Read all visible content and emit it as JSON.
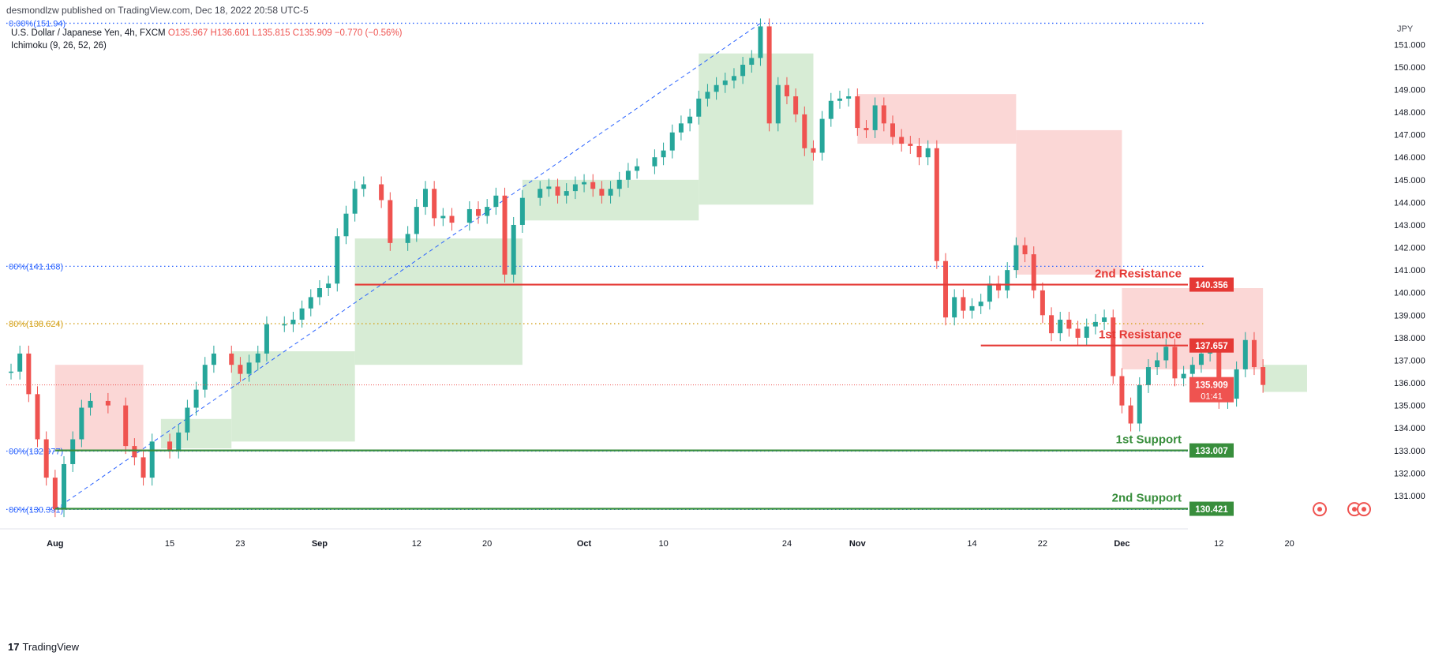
{
  "header": {
    "published": "desmondlzw published on TradingView.com, Dec 18, 2022 20:58 UTC-5"
  },
  "legend": {
    "symbol": "U.S. Dollar / Japanese Yen, 4h, FXCM",
    "values": "O135.967 H136.601 L135.815 C135.909 −0.770 (−0.56%)",
    "indicator": "Ichimoku (9, 26, 52, 26)"
  },
  "footer": {
    "brand": "TradingView"
  },
  "colors": {
    "up": "#26a69a",
    "down": "#ef5350",
    "resistance": "#e53935",
    "support": "#388e3c",
    "fib": "#2962ff",
    "fib80": "#d4a017",
    "cloud_bull": "#d3ead0",
    "cloud_bear": "#fbd3d1"
  },
  "chart_data": {
    "type": "candlestick",
    "currency_label": "JPY",
    "ylim": [
      129.6,
      152.2
    ],
    "y_ticks": [
      131,
      132,
      133,
      134,
      135,
      136,
      137,
      138,
      139,
      140,
      141,
      142,
      143,
      144,
      145,
      146,
      147,
      148,
      149,
      150,
      151
    ],
    "x_ticks": [
      "Aug",
      "15",
      "23",
      "Sep",
      "12",
      "20",
      "Oct",
      "10",
      "24",
      "Nov",
      "14",
      "22",
      "Dec",
      "12",
      "20"
    ],
    "last_price": 135.909,
    "countdown": "01:41",
    "price_path": [
      [
        "Jul 28",
        136.5
      ],
      [
        "Jul 29",
        137.3
      ],
      [
        "Jul 30",
        135.5
      ],
      [
        "Jul 31",
        133.5
      ],
      [
        "Aug 1",
        131.8
      ],
      [
        "Aug 2",
        130.4
      ],
      [
        "Aug 3",
        132.4
      ],
      [
        "Aug 4",
        133.5
      ],
      [
        "Aug 5",
        134.9
      ],
      [
        "Aug 6",
        135.2
      ],
      [
        "Aug 8",
        135.0
      ],
      [
        "Aug 10",
        133.2
      ],
      [
        "Aug 11",
        132.7
      ],
      [
        "Aug 12",
        131.8
      ],
      [
        "Aug 13",
        133.4
      ],
      [
        "Aug 15",
        133.0
      ],
      [
        "Aug 16",
        133.8
      ],
      [
        "Aug 17",
        134.9
      ],
      [
        "Aug 18",
        135.7
      ],
      [
        "Aug 19",
        136.8
      ],
      [
        "Aug 20",
        137.3
      ],
      [
        "Aug 22",
        136.8
      ],
      [
        "Aug 23",
        136.4
      ],
      [
        "Aug 24",
        136.9
      ],
      [
        "Aug 25",
        137.3
      ],
      [
        "Aug 26",
        138.6
      ],
      [
        "Aug 28",
        138.6
      ],
      [
        "Aug 29",
        138.8
      ],
      [
        "Aug 30",
        139.3
      ],
      [
        "Aug 31",
        139.8
      ],
      [
        "Sep 1",
        140.2
      ],
      [
        "Sep 2",
        140.4
      ],
      [
        "Sep 3",
        142.5
      ],
      [
        "Sep 4",
        143.5
      ],
      [
        "Sep 5",
        144.6
      ],
      [
        "Sep 6",
        144.8
      ],
      [
        "Sep 8",
        144.1
      ],
      [
        "Sep 9",
        142.2
      ],
      [
        "Sep 11",
        142.6
      ],
      [
        "Sep 12",
        143.8
      ],
      [
        "Sep 13",
        144.6
      ],
      [
        "Sep 14",
        143.3
      ],
      [
        "Sep 15",
        143.4
      ],
      [
        "Sep 16",
        143.1
      ],
      [
        "Sep 18",
        143.7
      ],
      [
        "Sep 19",
        143.4
      ],
      [
        "Sep 20",
        143.8
      ],
      [
        "Sep 21",
        144.3
      ],
      [
        "Sep 22",
        140.8
      ],
      [
        "Sep 23",
        143.0
      ],
      [
        "Sep 24",
        144.2
      ],
      [
        "Sep 26",
        144.6
      ],
      [
        "Sep 27",
        144.7
      ],
      [
        "Sep 28",
        144.3
      ],
      [
        "Sep 29",
        144.5
      ],
      [
        "Sep 30",
        144.8
      ],
      [
        "Oct 1",
        144.9
      ],
      [
        "Oct 2",
        144.6
      ],
      [
        "Oct 3",
        144.3
      ],
      [
        "Oct 4",
        144.6
      ],
      [
        "Oct 5",
        145.0
      ],
      [
        "Oct 6",
        145.4
      ],
      [
        "Oct 7",
        145.6
      ],
      [
        "Oct 9",
        146.0
      ],
      [
        "Oct 10",
        146.3
      ],
      [
        "Oct 11",
        147.1
      ],
      [
        "Oct 12",
        147.5
      ],
      [
        "Oct 13",
        147.8
      ],
      [
        "Oct 14",
        148.6
      ],
      [
        "Oct 15",
        148.9
      ],
      [
        "Oct 16",
        149.2
      ],
      [
        "Oct 17",
        149.4
      ],
      [
        "Oct 18",
        149.6
      ],
      [
        "Oct 19",
        150.1
      ],
      [
        "Oct 20",
        150.4
      ],
      [
        "Oct 21",
        151.8
      ],
      [
        "Oct 22",
        147.5
      ],
      [
        "Oct 23",
        149.2
      ],
      [
        "Oct 24",
        148.7
      ],
      [
        "Oct 25",
        147.9
      ],
      [
        "Oct 26",
        146.4
      ],
      [
        "Oct 27",
        146.2
      ],
      [
        "Oct 28",
        147.7
      ],
      [
        "Oct 29",
        148.5
      ],
      [
        "Oct 30",
        148.6
      ],
      [
        "Oct 31",
        148.7
      ],
      [
        "Nov 1",
        147.3
      ],
      [
        "Nov 2",
        147.2
      ],
      [
        "Nov 3",
        148.3
      ],
      [
        "Nov 4",
        147.5
      ],
      [
        "Nov 5",
        146.9
      ],
      [
        "Nov 6",
        146.6
      ],
      [
        "Nov 7",
        146.5
      ],
      [
        "Nov 8",
        146.0
      ],
      [
        "Nov 9",
        146.4
      ],
      [
        "Nov 10",
        141.4
      ],
      [
        "Nov 11",
        138.9
      ],
      [
        "Nov 12",
        139.8
      ],
      [
        "Nov 13",
        139.2
      ],
      [
        "Nov 14",
        139.4
      ],
      [
        "Nov 15",
        139.6
      ],
      [
        "Nov 16",
        140.4
      ],
      [
        "Nov 17",
        140.1
      ],
      [
        "Nov 18",
        141.0
      ],
      [
        "Nov 19",
        142.1
      ],
      [
        "Nov 20",
        141.7
      ],
      [
        "Nov 21",
        140.1
      ],
      [
        "Nov 22",
        139.0
      ],
      [
        "Nov 23",
        138.2
      ],
      [
        "Nov 24",
        138.8
      ],
      [
        "Nov 25",
        138.4
      ],
      [
        "Nov 26",
        138.0
      ],
      [
        "Nov 27",
        138.5
      ],
      [
        "Nov 28",
        138.7
      ],
      [
        "Nov 29",
        138.9
      ],
      [
        "Nov 30",
        136.3
      ],
      [
        "Dec 1",
        135.0
      ],
      [
        "Dec 2",
        134.2
      ],
      [
        "Dec 3",
        135.9
      ],
      [
        "Dec 4",
        136.7
      ],
      [
        "Dec 5",
        137.0
      ],
      [
        "Dec 6",
        137.6
      ],
      [
        "Dec 7",
        136.2
      ],
      [
        "Dec 8",
        136.4
      ],
      [
        "Dec 9",
        136.8
      ],
      [
        "Dec 10",
        137.3
      ],
      [
        "Dec 11",
        137.6
      ],
      [
        "Dec 12",
        135.2
      ],
      [
        "Dec 13",
        135.3
      ],
      [
        "Dec 14",
        136.6
      ],
      [
        "Dec 15",
        137.9
      ],
      [
        "Dec 16",
        136.7
      ],
      [
        "Dec 17",
        135.909
      ]
    ],
    "cloud_spans": [
      {
        "color": "bear",
        "from": "Aug 2",
        "to": "Aug 12",
        "top": 136.8,
        "bottom": 133.0
      },
      {
        "color": "bull",
        "from": "Aug 14",
        "to": "Aug 22",
        "top": 134.4,
        "bottom": 133.1
      },
      {
        "color": "bull",
        "from": "Aug 22",
        "to": "Sep 5",
        "top": 137.4,
        "bottom": 133.4
      },
      {
        "color": "bull",
        "from": "Sep 5",
        "to": "Sep 24",
        "top": 142.4,
        "bottom": 136.8
      },
      {
        "color": "bull",
        "from": "Sep 24",
        "to": "Oct 14",
        "top": 145.0,
        "bottom": 143.2
      },
      {
        "color": "bull",
        "from": "Oct 14",
        "to": "Oct 27",
        "top": 150.6,
        "bottom": 143.9
      },
      {
        "color": "bear",
        "from": "Nov 1",
        "to": "Nov 19",
        "top": 148.8,
        "bottom": 146.6
      },
      {
        "color": "bear",
        "from": "Nov 19",
        "to": "Dec 1",
        "top": 147.2,
        "bottom": 140.8
      },
      {
        "color": "bear",
        "from": "Dec 1",
        "to": "Dec 17",
        "top": 140.2,
        "bottom": 136.6
      },
      {
        "color": "bull",
        "from": "Dec 17",
        "to": "Dec 22",
        "top": 136.8,
        "bottom": 135.6
      }
    ],
    "fib_levels": [
      {
        "label": "0.00%(151.94)",
        "value": 151.94,
        "color": "fib"
      },
      {
        "label": "00%(141.168)",
        "value": 141.168,
        "color": "fib"
      },
      {
        "label": "80%(138.624)",
        "value": 138.624,
        "color": "fib80"
      },
      {
        "label": "00%(132.977)",
        "value": 132.977,
        "color": "fib"
      },
      {
        "label": "00%(130.391)",
        "value": 130.391,
        "color": "fib"
      }
    ],
    "levels": [
      {
        "label": "2nd Resistance",
        "value": 140.356,
        "kind": "resistance",
        "from": "Sep 5"
      },
      {
        "label": "1st Resistance",
        "value": 137.657,
        "kind": "resistance",
        "from": "Nov 15"
      },
      {
        "label": "1st Support",
        "value": 133.007,
        "kind": "support",
        "from": "Aug 2"
      },
      {
        "label": "2nd Support",
        "value": 130.421,
        "kind": "support",
        "from": "Aug 2"
      }
    ]
  }
}
